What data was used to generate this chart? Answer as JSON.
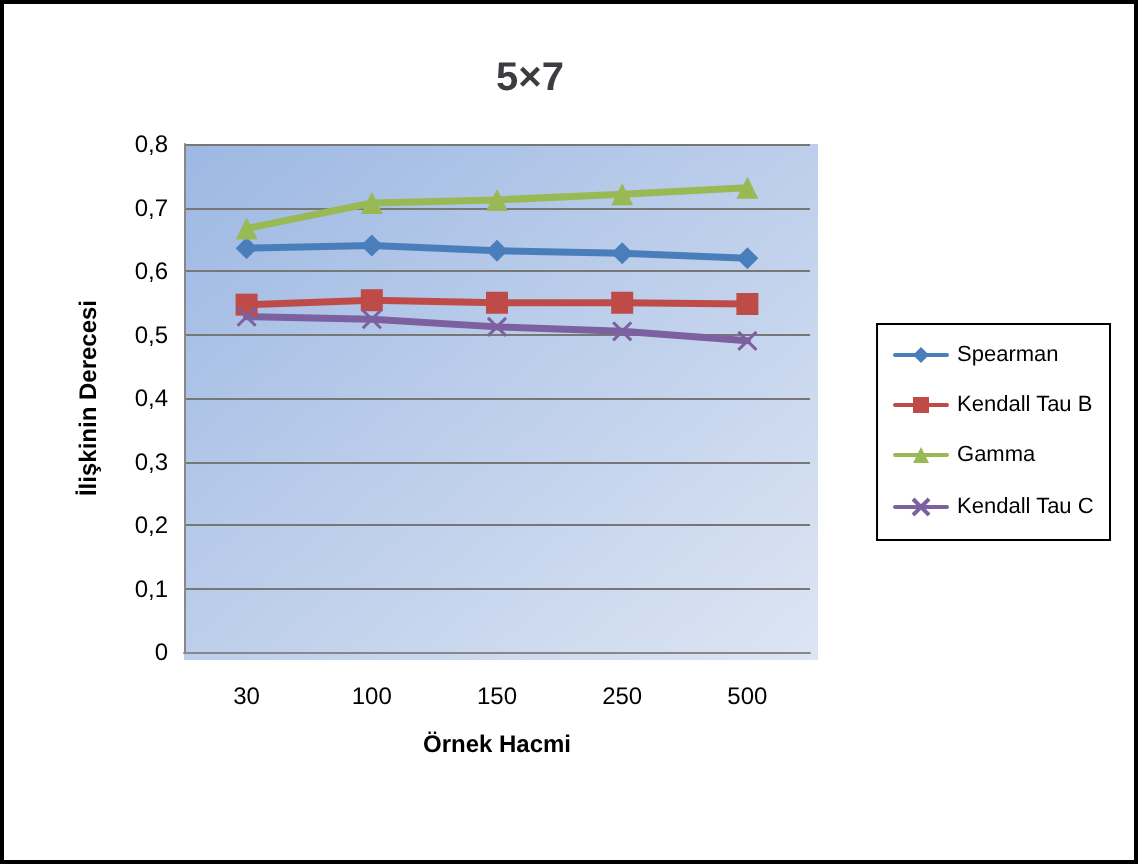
{
  "chart_data": {
    "type": "line",
    "title": "5×7",
    "xlabel": "Örnek Hacmi",
    "ylabel": "İlişkinin Derecesi",
    "categories": [
      "30",
      "100",
      "150",
      "250",
      "500"
    ],
    "series": [
      {
        "name": "Spearman",
        "color": "#4a7ebb",
        "marker": "diamond",
        "values": [
          0.636,
          0.64,
          0.632,
          0.628,
          0.62
        ]
      },
      {
        "name": "Kendall Tau B",
        "color": "#be4b48",
        "marker": "square",
        "values": [
          0.547,
          0.554,
          0.55,
          0.55,
          0.548
        ]
      },
      {
        "name": "Gamma",
        "color": "#98b954",
        "marker": "triangle",
        "values": [
          0.667,
          0.707,
          0.712,
          0.721,
          0.731
        ]
      },
      {
        "name": "Kendall Tau C",
        "color": "#7d60a0",
        "marker": "cross",
        "values": [
          0.528,
          0.524,
          0.512,
          0.505,
          0.49
        ]
      }
    ],
    "ylim": [
      0,
      0.8
    ],
    "yticks": [
      0,
      {
        "value": 0.1,
        "label": "0,1"
      },
      {
        "value": 0.2,
        "label": "0,2"
      },
      {
        "value": 0.3,
        "label": "0,3"
      },
      {
        "value": 0.4,
        "label": "0,4"
      },
      {
        "value": 0.5,
        "label": "0,5"
      },
      {
        "value": 0.6,
        "label": "0,6"
      },
      {
        "value": 0.7,
        "label": "0,7"
      },
      {
        "value": 0.8,
        "label": "0,8"
      }
    ],
    "grid": "y",
    "legend": "right",
    "line_style": "solid"
  }
}
